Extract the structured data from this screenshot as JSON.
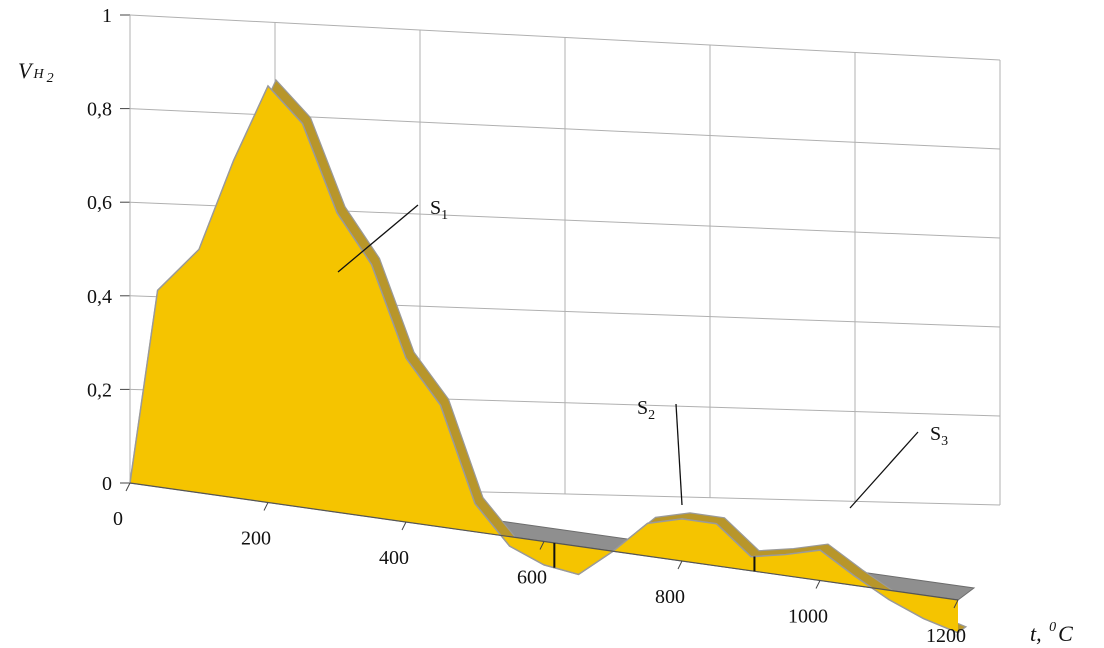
{
  "chart_data": {
    "type": "area",
    "title": "",
    "xlabel": {
      "main": "t, ",
      "sup": "0",
      "unit": "C"
    },
    "ylabel": {
      "main": "V",
      "italic_sub": "H",
      "sub": "2"
    },
    "xlim": [
      0,
      1200
    ],
    "ylim": [
      0,
      1
    ],
    "grid": true,
    "colors": {
      "fill": "#f5c400",
      "ridge": "#b8962a",
      "edge": "#9a9a9a",
      "grid": "#b0b0b0"
    },
    "x_ticks": [
      "0",
      "200",
      "400",
      "600",
      "800",
      "1000",
      "1200"
    ],
    "y_ticks": [
      "0",
      "0,2",
      "0,4",
      "0,6",
      "0,8",
      "1"
    ],
    "x": [
      0,
      40,
      100,
      150,
      200,
      250,
      300,
      350,
      400,
      450,
      500,
      550,
      600,
      650,
      700,
      750,
      800,
      850,
      900,
      950,
      1000,
      1050,
      1100,
      1150,
      1200
    ],
    "y": [
      0,
      0.42,
      0.52,
      0.72,
      0.89,
      0.82,
      0.64,
      0.54,
      0.35,
      0.26,
      0.06,
      -0.02,
      -0.05,
      -0.06,
      0.0,
      0.07,
      0.09,
      0.09,
      0.03,
      0.045,
      0.065,
      0.02,
      -0.02,
      -0.05,
      -0.07
    ],
    "dividers_x": [
      615,
      905
    ],
    "annotations": [
      {
        "main": "S",
        "sub": "1"
      },
      {
        "main": "S",
        "sub": "2"
      },
      {
        "main": "S",
        "sub": "3"
      }
    ]
  }
}
